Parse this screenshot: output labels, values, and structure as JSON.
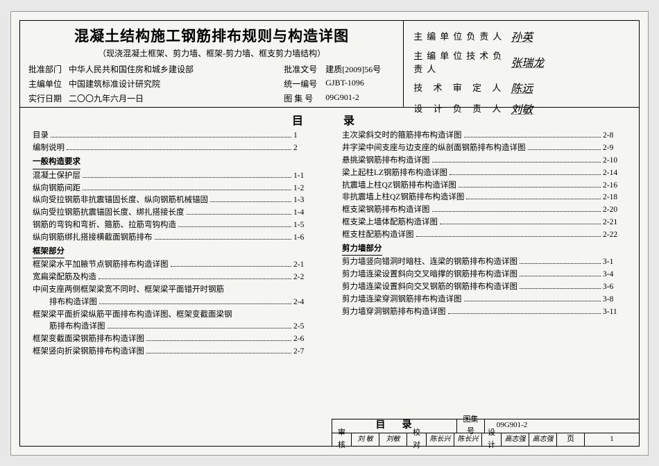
{
  "header": {
    "main_title": "混凝土结构施工钢筋排布规则与构造详图",
    "sub_title": "（现浇混凝土框架、剪力墙、框架-剪力墙、框支剪力墙结构）",
    "rows": [
      {
        "l1": "批准部门",
        "v1": "中华人民共和国住房和城乡建设部",
        "l2": "批准文号",
        "v2": "建质[2009]56号"
      },
      {
        "l1": "主编单位",
        "v1": "中国建筑标准设计研究院",
        "l2": "统一编号",
        "v2": "GJBT-1096"
      },
      {
        "l1": "实行日期",
        "v1": "二〇〇九年六月一日",
        "l2": "图 集 号",
        "v2": "09G901-2"
      }
    ],
    "signatures": [
      {
        "label": "主编单位负责人",
        "value": "孙英"
      },
      {
        "label": "主编单位技术负责人",
        "value": "张瑞龙"
      },
      {
        "label": "技 术 审 定 人",
        "value": "陈远"
      },
      {
        "label": "设 计 负 责 人",
        "value": "刘敏"
      }
    ]
  },
  "toc_heading_left": "目",
  "toc_heading_right": "录",
  "left_col": [
    {
      "type": "item",
      "t": "目录",
      "pg": "1"
    },
    {
      "type": "item",
      "t": "编制说明",
      "pg": "2"
    },
    {
      "type": "sect",
      "t": "一般构造要求"
    },
    {
      "type": "item",
      "t": "混凝土保护层",
      "pg": "1-1"
    },
    {
      "type": "item",
      "t": "纵向钢筋间距",
      "pg": "1-2"
    },
    {
      "type": "item",
      "t": "纵向受拉钢筋非抗震锚固长度、纵向钢筋机械锚固",
      "pg": "1-3"
    },
    {
      "type": "item",
      "t": "纵向受拉钢筋抗震锚固长度、绑扎搭接长度",
      "pg": "1-4"
    },
    {
      "type": "item",
      "t": "钢筋的弯钩和弯折、箍筋、拉筋弯钩构造",
      "pg": "1-5"
    },
    {
      "type": "item",
      "t": "纵向钢筋绑扎搭接横截面钢筋排布",
      "pg": "1-6"
    },
    {
      "type": "sect",
      "t": "框架部分"
    },
    {
      "type": "item",
      "t": "框架梁水平加腋节点钢筋排布构造详图",
      "pg": "2-1"
    },
    {
      "type": "item",
      "t": "宽扁梁配筋及构造",
      "pg": "2-2"
    },
    {
      "type": "item",
      "t": "中间支座两侧框架梁宽不同时、框架梁平面错开时钢筋",
      "pg": ""
    },
    {
      "type": "indent",
      "t": "排布构造详图",
      "pg": "2-4"
    },
    {
      "type": "item",
      "t": "框架梁平面折梁纵筋平面排布构造详图、框架变截面梁钢",
      "pg": ""
    },
    {
      "type": "indent",
      "t": "筋排布构造详图",
      "pg": "2-5"
    },
    {
      "type": "item",
      "t": "框架变截面梁钢筋排布构造详图",
      "pg": "2-6"
    },
    {
      "type": "item",
      "t": "框架竖向折梁钢筋排布构造详图",
      "pg": "2-7"
    }
  ],
  "right_col": [
    {
      "type": "item",
      "t": "主次梁斜交时的箍筋排布构造详图",
      "pg": "2-8"
    },
    {
      "type": "item",
      "t": "井字梁中间支座与边支座的纵剖面钢筋排布构造详图",
      "pg": "2-9"
    },
    {
      "type": "item",
      "t": "悬挑梁钢筋排布构造详图",
      "pg": "2-10"
    },
    {
      "type": "item",
      "t": "梁上起柱LZ钢筋排布构造详图",
      "pg": "2-14"
    },
    {
      "type": "item",
      "t": "抗震墙上柱QZ钢筋排布构造详图",
      "pg": "2-16"
    },
    {
      "type": "item",
      "t": "非抗震墙上柱QZ钢筋排布构造详图",
      "pg": "2-18"
    },
    {
      "type": "item",
      "t": "框支梁钢筋排布构造详图",
      "pg": "2-20"
    },
    {
      "type": "item",
      "t": "框支梁上墙体配筋构造详图",
      "pg": "2-21"
    },
    {
      "type": "item",
      "t": "框支柱配筋构造详图",
      "pg": "2-22"
    },
    {
      "type": "sect",
      "t": "剪力墙部分"
    },
    {
      "type": "item",
      "t": "剪力墙竖向错洞时暗柱、连梁的钢筋排布构造详图",
      "pg": "3-1"
    },
    {
      "type": "item",
      "t": "剪力墙连梁设置斜向交叉暗撑的钢筋排布构造详图",
      "pg": "3-4"
    },
    {
      "type": "item",
      "t": "剪力墙连梁设置斜向交叉钢筋的钢筋排布构造详图",
      "pg": "3-6"
    },
    {
      "type": "item",
      "t": "剪力墙连梁穿洞钢筋排布构造详图",
      "pg": "3-8"
    },
    {
      "type": "item",
      "t": "剪力墙穿洞钢筋排布构造详图",
      "pg": "3-11"
    }
  ],
  "titleblock": {
    "mulu": "目录",
    "tjh_label": "图集号",
    "tjh_value": "09G901-2",
    "cells": [
      {
        "l": "审核",
        "v": "刘 敏"
      },
      {
        "l": "",
        "v": "刘敏"
      },
      {
        "l": "校对",
        "v": "陈长兴"
      },
      {
        "l": "",
        "v": "陈长兴"
      },
      {
        "l": "设计",
        "v": "高志强"
      },
      {
        "l": "",
        "v": "高志强"
      }
    ],
    "page_label": "页",
    "page_value": "1"
  }
}
